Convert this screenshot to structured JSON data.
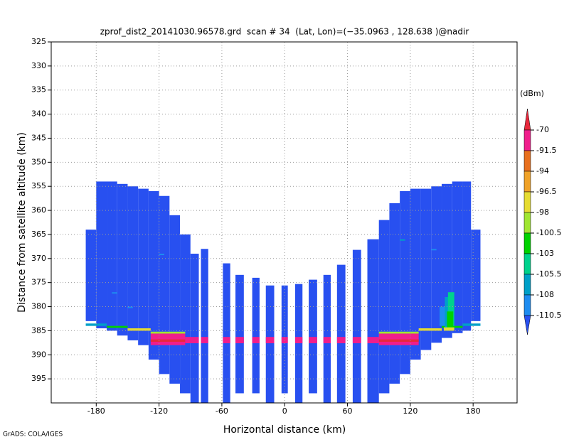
{
  "chart_data": {
    "type": "heatmap",
    "title": "zprof_dist2_20141030.96578.grd  scan # 34  (Lat, Lon)=(−35.0963 , 128.638 )@nadir",
    "x_label": "Horizontal distance (km)",
    "y_label": "Distance from satellite altitude (km)",
    "footer": "GrADS: COLA/IGES",
    "xlim": [
      -223,
      222
    ],
    "xticks": [
      -180,
      -120,
      -60,
      0,
      60,
      120,
      180
    ],
    "ylim": [
      400,
      325
    ],
    "yticks": [
      325,
      330,
      335,
      340,
      345,
      350,
      355,
      360,
      365,
      370,
      375,
      380,
      385,
      390,
      395
    ],
    "grid": true,
    "colorbar": {
      "label": "(dBm)",
      "levels": [
        -70,
        -91.5,
        -94,
        -96.5,
        -98,
        -100.5,
        -103,
        -105.5,
        -108,
        -110.5
      ],
      "colors": [
        "#e8283c",
        "#f01e8c",
        "#e8701e",
        "#f0a228",
        "#e6dc32",
        "#a0e632",
        "#00d200",
        "#00d28c",
        "#00a0c8",
        "#1e8cf0",
        "#2850f0"
      ]
    },
    "cells": [
      [
        -190,
        -180,
        364,
        383,
        -112
      ],
      [
        -180,
        -170,
        354,
        384.5,
        -112
      ],
      [
        -170,
        -160,
        354,
        385,
        -112
      ],
      [
        -160,
        -150,
        354.5,
        386,
        -112
      ],
      [
        -150,
        -140,
        355,
        387,
        -112
      ],
      [
        -140,
        -130,
        355.5,
        388,
        -112
      ],
      [
        -130,
        -120,
        356,
        391,
        -112
      ],
      [
        -120,
        -110,
        357,
        394,
        -112
      ],
      [
        -110,
        -100,
        361,
        396,
        -112
      ],
      [
        -100,
        -90,
        365,
        398,
        -112
      ],
      [
        -90,
        -82,
        369,
        400,
        -112
      ],
      [
        -80,
        -73,
        368,
        400,
        -112
      ],
      [
        -59,
        -52,
        371,
        400,
        -112
      ],
      [
        -47,
        -39,
        373.4,
        398,
        -112
      ],
      [
        -31,
        -24,
        374,
        398,
        -112
      ],
      [
        -18,
        -10,
        375.6,
        400,
        -112
      ],
      [
        -3,
        3,
        375.6,
        398,
        -112
      ],
      [
        10,
        17,
        375.3,
        400,
        -112
      ],
      [
        23,
        31,
        374.4,
        398,
        -112
      ],
      [
        37,
        44,
        373.4,
        400,
        -112
      ],
      [
        50,
        58,
        371.3,
        400,
        -112
      ],
      [
        65,
        73,
        368.2,
        400,
        -112
      ],
      [
        79,
        90,
        366,
        400,
        -112
      ],
      [
        90,
        100,
        362,
        398,
        -112
      ],
      [
        100,
        110,
        358.5,
        396,
        -112
      ],
      [
        110,
        120,
        356,
        394,
        -112
      ],
      [
        120,
        130,
        355.5,
        391,
        -112
      ],
      [
        130,
        140,
        355.5,
        389,
        -112
      ],
      [
        140,
        150,
        355,
        387.5,
        -112
      ],
      [
        150,
        160,
        354.5,
        386.5,
        -112
      ],
      [
        160,
        170,
        354,
        385.5,
        -112
      ],
      [
        170,
        178,
        354,
        385,
        -112
      ],
      [
        178,
        187,
        364,
        383,
        -112
      ],
      [
        -190,
        -170,
        383.5,
        384,
        -106
      ],
      [
        -170,
        -150,
        384,
        384.4,
        -101
      ],
      [
        -150,
        -128,
        384.5,
        385,
        -97
      ],
      [
        -128,
        -95,
        385.2,
        385.6,
        -99
      ],
      [
        -128,
        -95,
        385.6,
        388,
        -80
      ],
      [
        -128,
        -95,
        386.8,
        387.3,
        -65
      ],
      [
        90,
        128,
        385.2,
        385.6,
        -99
      ],
      [
        90,
        128,
        385.6,
        388,
        -80
      ],
      [
        90,
        128,
        386.8,
        387.3,
        -65
      ],
      [
        128,
        150,
        384.5,
        385,
        -97
      ],
      [
        150,
        170,
        384,
        384.4,
        -101
      ],
      [
        170,
        187,
        383.5,
        384,
        -106
      ],
      [
        -95,
        -82,
        386.3,
        387.6,
        -85
      ],
      [
        -80,
        -73,
        386.3,
        387.6,
        -85
      ],
      [
        -59,
        -52,
        386.3,
        387.6,
        -85
      ],
      [
        -47,
        -39,
        386.3,
        387.6,
        -85
      ],
      [
        -31,
        -24,
        386.3,
        387.6,
        -85
      ],
      [
        -18,
        -10,
        386.3,
        387.6,
        -85
      ],
      [
        -3,
        3,
        386.3,
        387.6,
        -85
      ],
      [
        10,
        17,
        386.3,
        387.6,
        -85
      ],
      [
        23,
        31,
        386.3,
        387.6,
        -85
      ],
      [
        37,
        44,
        386.3,
        387.6,
        -85
      ],
      [
        50,
        58,
        386.3,
        387.6,
        -85
      ],
      [
        65,
        73,
        386.3,
        387.6,
        -85
      ],
      [
        79,
        90,
        386.3,
        387.6,
        -85
      ],
      [
        148,
        153,
        380,
        384,
        -109
      ],
      [
        153,
        158,
        378,
        385,
        -106
      ],
      [
        156,
        162,
        377,
        384,
        -104
      ],
      [
        155,
        161,
        381,
        385,
        -102
      ],
      [
        152,
        162,
        384.3,
        385,
        -97
      ],
      [
        -165,
        -160,
        377,
        377.3,
        -109
      ],
      [
        -120,
        -115,
        369,
        369.3,
        -109
      ],
      [
        110,
        115,
        366,
        366.3,
        -106
      ],
      [
        140,
        145,
        368,
        368.3,
        -109
      ],
      [
        -150,
        -145,
        380,
        380.3,
        -109
      ]
    ]
  }
}
